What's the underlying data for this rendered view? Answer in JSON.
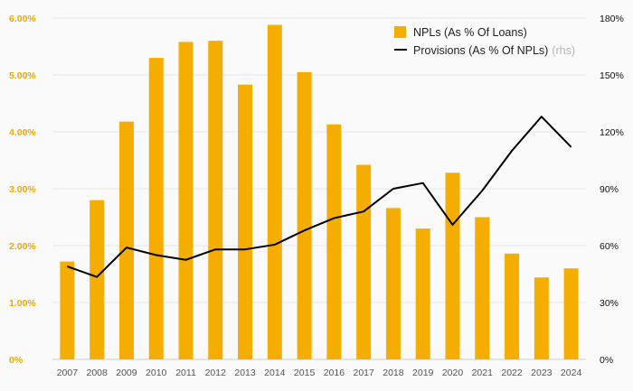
{
  "chart_data": {
    "type": "bar",
    "categories": [
      "2007",
      "2008",
      "2009",
      "2010",
      "2011",
      "2012",
      "2013",
      "2014",
      "2015",
      "2016",
      "2017",
      "2018",
      "2019",
      "2020",
      "2021",
      "2022",
      "2023",
      "2024"
    ],
    "series": [
      {
        "name": "NPLs (As % Of Loans)",
        "type": "bar",
        "axis": "left",
        "color": "#f5ad00",
        "values": [
          1.72,
          2.8,
          4.18,
          5.3,
          5.58,
          5.6,
          4.83,
          5.88,
          5.05,
          4.13,
          3.42,
          2.66,
          2.3,
          3.28,
          2.5,
          1.86,
          1.44,
          1.6
        ]
      },
      {
        "name": "Provisions (As % Of NPLs)",
        "legend_suffix": "(rhs)",
        "type": "line",
        "axis": "right",
        "color": "#000000",
        "values": [
          49,
          43.5,
          59,
          55,
          52.5,
          58,
          58,
          60.5,
          68,
          74.5,
          78,
          90,
          93,
          71,
          89,
          110,
          128,
          112
        ]
      }
    ],
    "y_left": {
      "min": 0,
      "max": 6,
      "ticks": [
        "0%",
        "1.00%",
        "2.00%",
        "3.00%",
        "4.00%",
        "5.00%",
        "6.00%"
      ]
    },
    "y_right": {
      "min": 0,
      "max": 180,
      "ticks": [
        "0%",
        "30%",
        "60%",
        "90%",
        "120%",
        "150%",
        "180%"
      ]
    },
    "grid": true,
    "legend_position": "top-right",
    "colors": {
      "grid": "#e6e6e6",
      "left_tick": "#f0a800",
      "right_tick": "#111111",
      "x_tick": "#555555"
    }
  }
}
